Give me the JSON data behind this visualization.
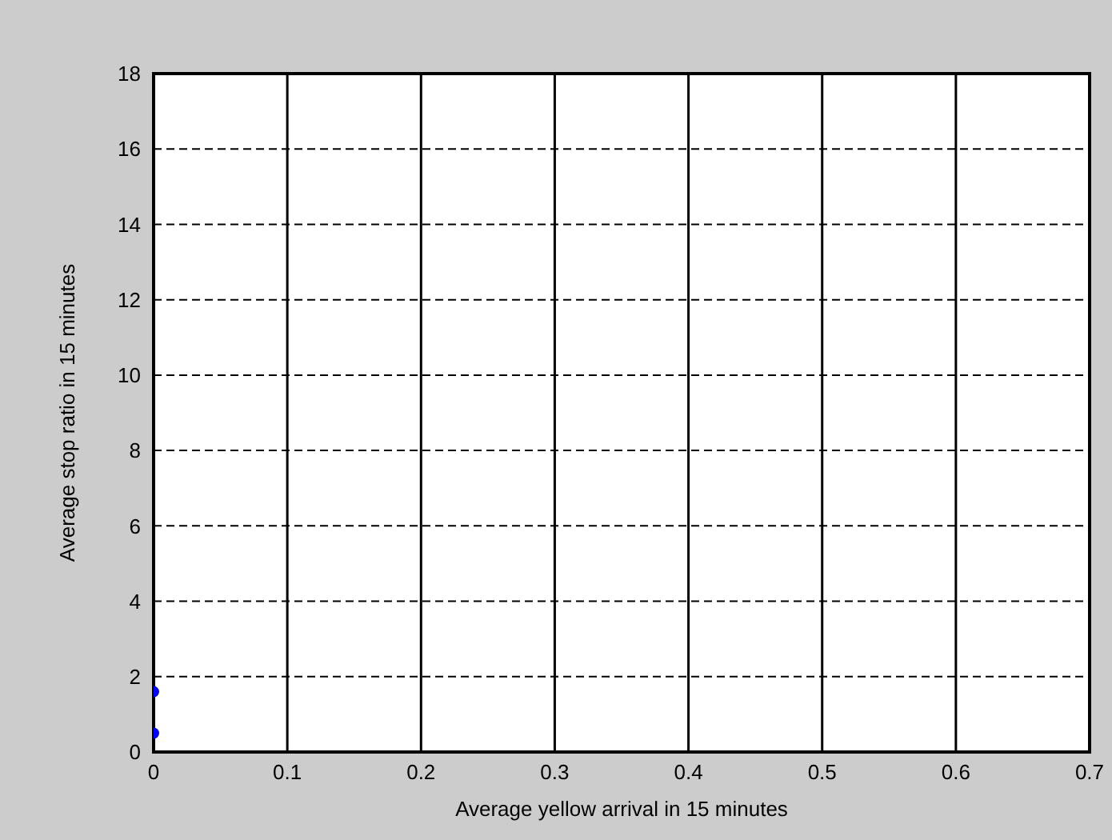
{
  "chart_data": {
    "type": "scatter",
    "xlabel": "Average yellow arrival in 15 minutes",
    "ylabel": "Average stop ratio in 15 minutes",
    "x": [
      0,
      0
    ],
    "values": [
      1.6,
      0.5
    ],
    "color": "#0000ff",
    "marker": "circle",
    "xlim": [
      0,
      0.7
    ],
    "xticks": [
      0,
      0.1,
      0.2,
      0.3,
      0.4,
      0.5,
      0.6,
      0.7
    ],
    "ylim": [
      0,
      18
    ],
    "yticks": [
      0,
      2,
      4,
      6,
      8,
      10,
      12,
      14,
      16,
      18
    ],
    "grid": true
  }
}
